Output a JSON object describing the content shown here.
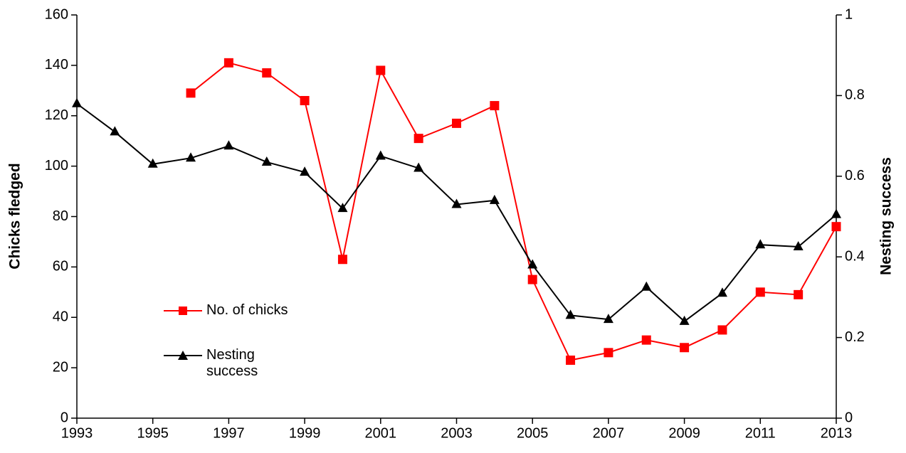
{
  "chart_data": {
    "type": "line",
    "x": [
      1993,
      1994,
      1995,
      1996,
      1997,
      1998,
      1999,
      2000,
      2001,
      2002,
      2003,
      2004,
      2005,
      2006,
      2007,
      2008,
      2009,
      2010,
      2011,
      2012,
      2013
    ],
    "series": [
      {
        "name": "No. of chicks",
        "color": "#ff0000",
        "marker": "square",
        "values": [
          null,
          null,
          null,
          129,
          141,
          137,
          126,
          63,
          138,
          111,
          117,
          124,
          55,
          23,
          26,
          31,
          28,
          35,
          50,
          49,
          76
        ]
      },
      {
        "name": "Nesting success",
        "color": "#000000",
        "marker": "triangle",
        "axis": "y2",
        "values": [
          0.78,
          0.71,
          0.63,
          0.645,
          0.675,
          0.635,
          0.61,
          0.52,
          0.65,
          0.62,
          0.53,
          0.54,
          0.38,
          0.255,
          0.245,
          0.325,
          0.24,
          0.31,
          0.43,
          0.425,
          0.505
        ]
      }
    ],
    "ylabel": "Chicks fledged",
    "y2label": "Nesting success",
    "xlim": [
      1993,
      2013
    ],
    "xticks": [
      1993,
      1995,
      1997,
      1999,
      2001,
      2003,
      2005,
      2007,
      2009,
      2011,
      2013
    ],
    "ylim": [
      0,
      160
    ],
    "yticks": [
      0,
      20,
      40,
      60,
      80,
      100,
      120,
      140,
      160
    ],
    "y2lim": [
      0,
      1
    ],
    "y2ticks": [
      0,
      0.2,
      0.4,
      0.6,
      0.8,
      1
    ],
    "grid": false
  }
}
